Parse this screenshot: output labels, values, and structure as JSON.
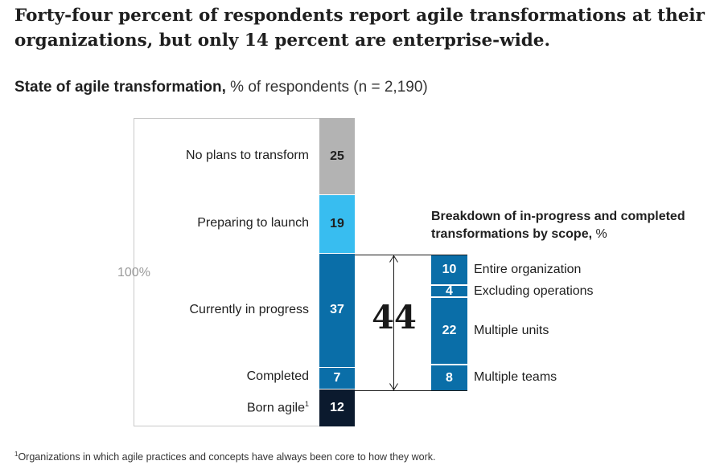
{
  "title": "Forty-four percent of respondents report agile transformations at their organizations, but only 14 percent are enterprise-wide.",
  "subtitle": {
    "bold": "State of agile transformation,",
    "rest": " % of respondents (n = 2,190)"
  },
  "chart_data": [
    {
      "type": "bar",
      "title": "State of agile transformation",
      "unit": "% of respondents (n = 2,190)",
      "total_label": "100%",
      "categories": [
        "No plans to transform",
        "Preparing to launch",
        "Currently in progress",
        "Completed",
        "Born agile"
      ],
      "values": [
        25,
        19,
        37,
        7,
        12
      ],
      "value_labels": [
        "25",
        "19",
        "37",
        "7",
        "12"
      ],
      "footnote_marker": "1",
      "colors": [
        "#b3b3b3",
        "#38bdf0",
        "#0a6ea8",
        "#0a6ea8",
        "#0b1a2e"
      ],
      "label_colors": [
        "#1f1f1f",
        "#1f1f1f",
        "#ffffff",
        "#ffffff",
        "#ffffff"
      ],
      "bracket_total": "44"
    },
    {
      "type": "bar",
      "title": "Breakdown of in-progress and completed transformations by scope,",
      "unit": " %",
      "categories": [
        "Entire organization",
        "Excluding operations",
        "Multiple units",
        "Multiple teams"
      ],
      "values": [
        10,
        4,
        22,
        8
      ],
      "value_labels": [
        "10",
        "4",
        "22",
        "8"
      ],
      "color": "#0a6ea8"
    }
  ],
  "footnote": {
    "marker": "1",
    "text": "Organizations in which agile practices and concepts have always been core to how they work."
  }
}
